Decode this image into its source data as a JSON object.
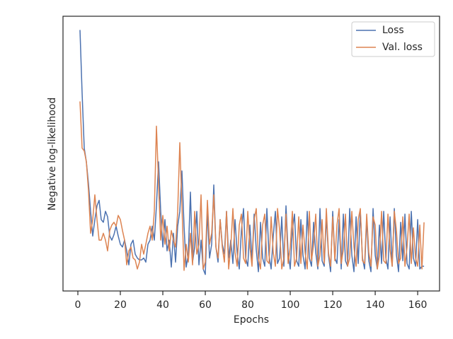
{
  "chart_data": {
    "type": "line",
    "xlabel": "Epochs",
    "ylabel": "Negative log-likelihood",
    "xlim": [
      -7,
      170.3
    ],
    "ylim": [
      0,
      100
    ],
    "xticks": [
      0,
      20,
      40,
      60,
      80,
      100,
      120,
      140,
      160
    ],
    "legend": "upper right",
    "x": [
      1,
      2,
      3,
      4,
      5,
      6,
      7,
      8,
      9,
      10,
      11,
      12,
      13,
      14,
      15,
      16,
      17,
      18,
      19,
      20,
      21,
      22,
      23,
      24,
      25,
      26,
      27,
      28,
      29,
      30,
      31,
      32,
      33,
      34,
      35,
      36,
      37,
      38,
      39,
      40,
      41,
      42,
      43,
      44,
      45,
      46,
      47,
      48,
      49,
      50,
      51,
      52,
      53,
      54,
      55,
      56,
      57,
      58,
      59,
      60,
      61,
      62,
      63,
      64,
      65,
      66,
      67,
      68,
      69,
      70,
      71,
      72,
      73,
      74,
      75,
      76,
      77,
      78,
      79,
      80,
      81,
      82,
      83,
      84,
      85,
      86,
      87,
      88,
      89,
      90,
      91,
      92,
      93,
      94,
      95,
      96,
      97,
      98,
      99,
      100,
      101,
      102,
      103,
      104,
      105,
      106,
      107,
      108,
      109,
      110,
      111,
      112,
      113,
      114,
      115,
      116,
      117,
      118,
      119,
      120,
      121,
      122,
      123,
      124,
      125,
      126,
      127,
      128,
      129,
      130,
      131,
      132,
      133,
      134,
      135,
      136,
      137,
      138,
      139,
      140,
      141,
      142,
      143,
      144,
      145,
      146,
      147,
      148,
      149,
      150,
      151,
      152,
      153,
      154,
      155,
      156,
      157,
      158,
      159,
      160,
      161,
      162,
      163
    ],
    "series": [
      {
        "name": "Loss",
        "color": "#4c72b0",
        "values": [
          95,
          72,
          52,
          47,
          39,
          29,
          20,
          26,
          31,
          33,
          26,
          25,
          29,
          27,
          20,
          18.5,
          20.5,
          23.6,
          20,
          17,
          16,
          18.5,
          14.6,
          9.5,
          17,
          18.5,
          13.4,
          12,
          11.3,
          11.3,
          12,
          10.5,
          17,
          18.5,
          23.6,
          18.5,
          31,
          47,
          29,
          16,
          26,
          14.6,
          18.5,
          8.7,
          21,
          10.5,
          23.6,
          29,
          43.7,
          23.6,
          8.7,
          13.4,
          36,
          10.5,
          16,
          29,
          9.5,
          18.5,
          8,
          6,
          29,
          12,
          17,
          38.6,
          16,
          10.5,
          26,
          17,
          13.4,
          29,
          12,
          18.5,
          10,
          26,
          14,
          8,
          22,
          30,
          12,
          9,
          24,
          11,
          28,
          15,
          7,
          25,
          12,
          9,
          30,
          13,
          8,
          20,
          29,
          10,
          12,
          27,
          9,
          31,
          14,
          8,
          22,
          28,
          11,
          9,
          26,
          13,
          8,
          29,
          12,
          9,
          25,
          14,
          8,
          30,
          11,
          9,
          27,
          13,
          7,
          29,
          12,
          10,
          26,
          8,
          28,
          11,
          9,
          30,
          13,
          7,
          27,
          10,
          29,
          12,
          8,
          26,
          11,
          7,
          30,
          13,
          8,
          24,
          10,
          29,
          12,
          8,
          27,
          9,
          30,
          13,
          7,
          25,
          11,
          28,
          10,
          8,
          29,
          12,
          9,
          26,
          8,
          9,
          9
        ]
      },
      {
        "name": "Val. loss",
        "color": "#dd8452",
        "values": [
          69,
          52,
          51,
          47,
          36.5,
          21,
          26,
          35,
          26,
          18.5,
          18.5,
          21,
          18.5,
          14.6,
          22,
          24,
          25,
          23.6,
          27.5,
          26,
          22,
          18.5,
          9.5,
          14.6,
          16,
          12,
          11.3,
          8,
          10.5,
          17,
          13.4,
          17,
          21,
          23.6,
          18.5,
          29,
          60,
          39,
          18.5,
          27.5,
          17,
          23.6,
          14.6,
          22,
          18.5,
          16,
          29,
          54,
          31,
          7.5,
          17,
          10.5,
          21,
          9.5,
          29,
          13.4,
          17,
          35,
          8,
          10.5,
          33,
          17,
          21,
          35,
          16,
          12,
          26,
          16,
          10.5,
          29,
          8,
          16,
          30,
          14,
          9,
          24,
          28,
          12,
          10,
          29,
          16,
          9,
          26,
          30,
          12,
          8,
          24,
          28,
          11,
          10,
          27,
          14,
          9,
          30,
          22,
          8,
          12,
          28,
          10,
          16,
          29,
          9,
          12,
          27,
          10,
          24,
          14,
          8,
          29,
          11,
          17,
          28,
          9,
          13,
          26,
          10,
          30,
          14,
          9,
          27,
          11,
          24,
          30,
          10,
          15,
          28,
          9,
          12,
          29,
          16,
          9,
          26,
          30,
          11,
          10,
          28,
          14,
          9,
          27,
          24,
          8,
          13,
          29,
          11,
          10,
          28,
          15,
          9,
          29,
          22,
          10,
          12,
          27,
          9,
          16,
          28,
          10,
          23,
          12,
          9,
          24,
          8,
          25
        ]
      }
    ]
  }
}
